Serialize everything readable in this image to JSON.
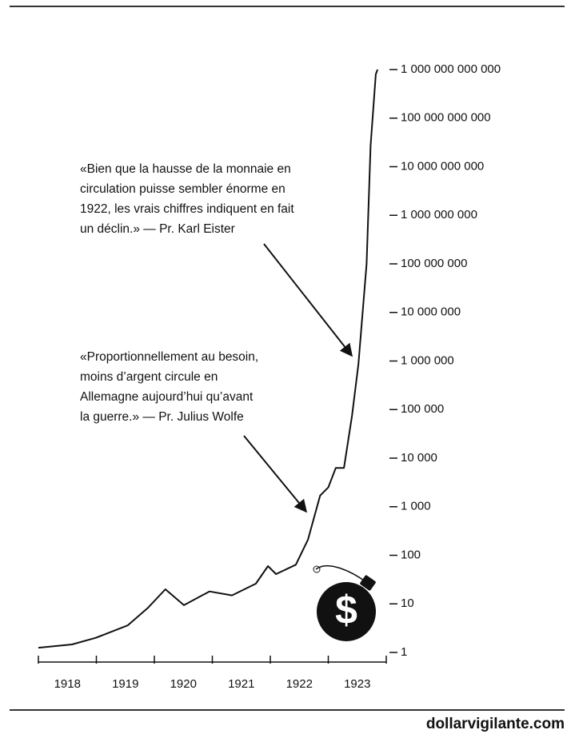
{
  "chart_data": {
    "type": "line",
    "log_scale": true,
    "color": "#111111",
    "categories": [
      "1918",
      "1919",
      "1920",
      "1921",
      "1922",
      "1923"
    ],
    "x": [
      1918.0,
      1918.58,
      1918.99,
      1919.54,
      1919.89,
      1920.19,
      1920.51,
      1920.95,
      1921.34,
      1921.75,
      1921.96,
      1922.1,
      1922.44,
      1922.65,
      1922.86,
      1923.0,
      1923.13,
      1923.27,
      1923.41,
      1923.52,
      1923.66,
      1923.73,
      1923.82,
      1923.85
    ],
    "values": [
      1.25,
      1.46,
      2,
      3.6,
      8.3,
      20,
      9.4,
      18,
      15,
      26,
      60,
      41,
      64,
      210,
      1700,
      2500,
      6300,
      6300,
      75000,
      870000,
      100000000,
      27000000000,
      800000000000,
      1000000000000
    ],
    "xlim": [
      1918,
      1924
    ],
    "xticks": [
      1918,
      1919,
      1920,
      1921,
      1922,
      1923,
      1924
    ],
    "ylim": [
      1,
      1000000000000
    ],
    "yticks": [
      1,
      10,
      100,
      {
        "value": 1000,
        "label": "1 000"
      },
      {
        "value": 10000,
        "label": "10 000"
      },
      {
        "value": 100000,
        "label": "100 000"
      },
      {
        "value": 1000000,
        "label": "1 000 000"
      },
      {
        "value": 10000000,
        "label": "10 000 000"
      },
      {
        "value": 100000000,
        "label": "100 000 000"
      },
      {
        "value": 1000000000,
        "label": "1 000 000 000"
      },
      {
        "value": 10000000000,
        "label": "10 000 000 000"
      },
      {
        "value": 100000000000,
        "label": "100 000 000 000"
      },
      {
        "value": 1000000000000,
        "label": "1 000 000 000 000"
      }
    ],
    "annotations": [
      [
        "«Bien que la hausse de la monnaie en",
        "circulation puisse sembler énorme en",
        "1922, les vrais chiffres indiquent en fait",
        "un déclin.» — Pr. Karl Eister"
      ],
      [
        "«Proportionnellement au besoin,",
        "moins d’argent circule en",
        "Allemagne aujourd’hui qu’avant",
        "la guerre.» — Pr. Julius Wolfe"
      ]
    ],
    "source": "dollarvigilante.com"
  }
}
